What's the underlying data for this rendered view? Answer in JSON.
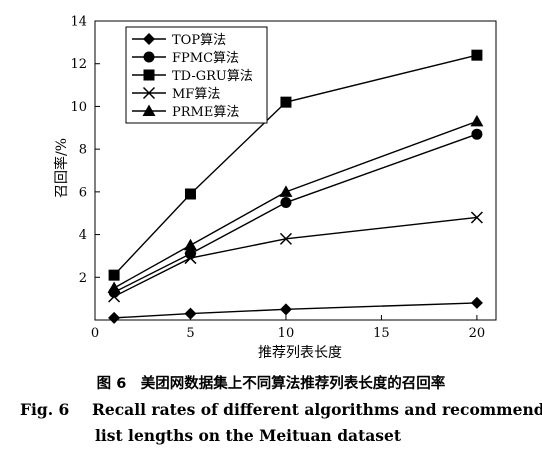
{
  "chart_data": {
    "type": "line",
    "xlabel": "推荐列表长度",
    "ylabel": "召回率/%",
    "xlim": [
      0,
      21
    ],
    "ylim": [
      0,
      14
    ],
    "x_ticks": [
      0,
      5,
      10,
      15,
      20
    ],
    "y_ticks": [
      2,
      4,
      6,
      8,
      10,
      12,
      14
    ],
    "x": [
      1,
      5,
      10,
      20
    ],
    "legend_position": "top-left",
    "grid": false,
    "series": [
      {
        "name": "TOP算法",
        "marker": "diamond",
        "values": [
          0.1,
          0.3,
          0.5,
          0.8
        ]
      },
      {
        "name": "FPMC算法",
        "marker": "circle",
        "values": [
          1.3,
          3.1,
          5.5,
          8.7
        ]
      },
      {
        "name": "TD-GRU算法",
        "marker": "square",
        "values": [
          2.1,
          5.9,
          10.2,
          12.4
        ]
      },
      {
        "name": "MF算法",
        "marker": "cross",
        "values": [
          1.1,
          2.9,
          3.8,
          4.8
        ]
      },
      {
        "name": "PRME算法",
        "marker": "triangle",
        "values": [
          1.5,
          3.5,
          6.0,
          9.3
        ]
      }
    ]
  },
  "caption": {
    "cn": "图 6　美团网数据集上不同算法推荐列表长度的召回率",
    "en_label": "Fig. 6",
    "en_line1": "Recall rates of different algorithms and recommended",
    "en_line2": "list lengths on the Meituan dataset"
  }
}
